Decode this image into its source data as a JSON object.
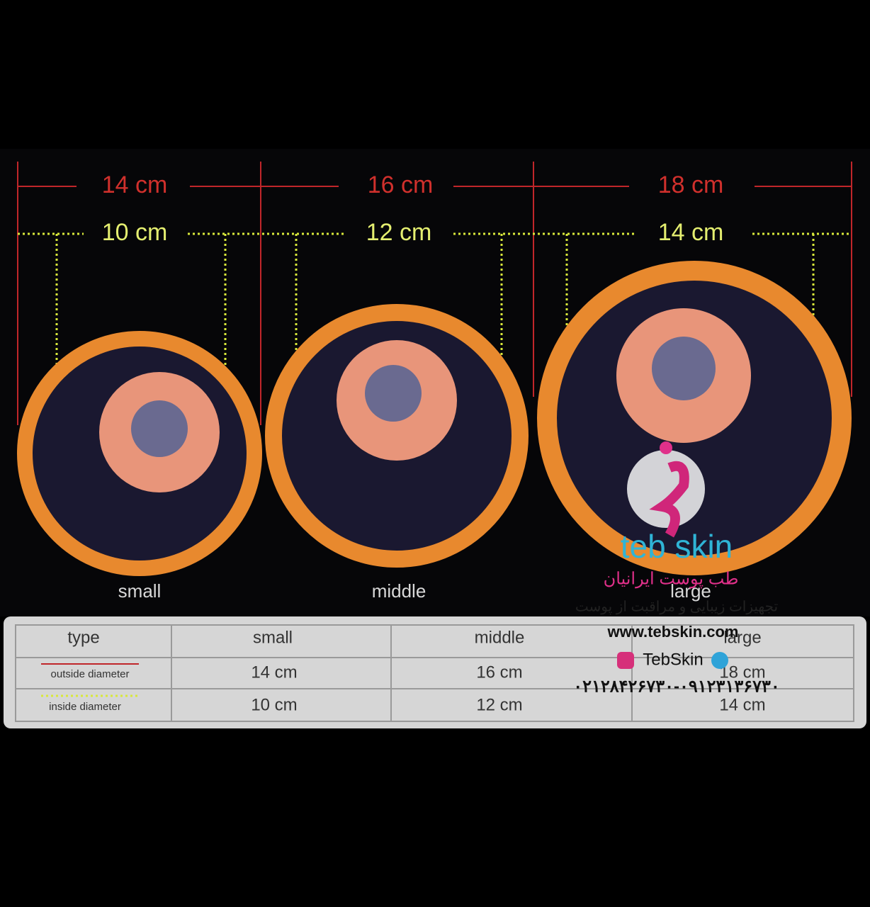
{
  "dimensions": {
    "outside": [
      "14 cm",
      "16 cm",
      "18 cm"
    ],
    "inside": [
      "10 cm",
      "12 cm",
      "14 cm"
    ]
  },
  "cups": [
    "small",
    "middle",
    "large"
  ],
  "table": {
    "header": [
      "type",
      "small",
      "middle",
      "large"
    ],
    "rows": [
      [
        "outside diameter",
        "14 cm",
        "16 cm",
        "18 cm"
      ],
      [
        "inside diameter",
        "10 cm",
        "12 cm",
        "14 cm"
      ]
    ]
  },
  "watermark": {
    "brand": "teb skin",
    "name": "طب پوست ایرانیان",
    "tagline": "تجهیزات زیبایی و مراقبت از پوست",
    "website": "www.tebskin.com",
    "handle": "TebSkin",
    "phone": "۰۲۱۲۸۴۲۶۷۳۰-۰۹۱۲۳۱۳۶۷۳۰"
  }
}
